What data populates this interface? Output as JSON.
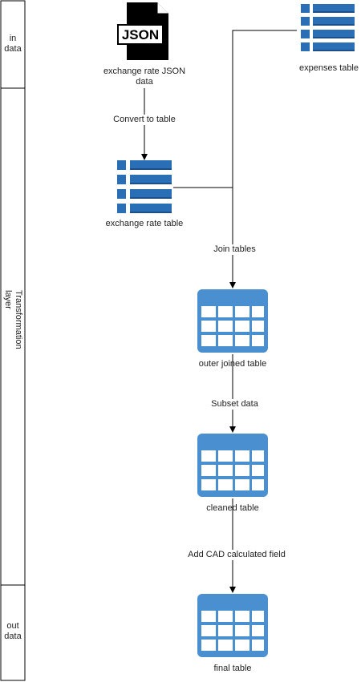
{
  "lanes": [
    {
      "id": "in",
      "label_lines": [
        "in",
        "data"
      ]
    },
    {
      "id": "transform",
      "label_lines": [
        "Transformation",
        "layer"
      ]
    },
    {
      "id": "out",
      "label_lines": [
        "out",
        "data"
      ]
    }
  ],
  "nodes": {
    "json": {
      "label_lines": [
        "exchange rate JSON",
        "data"
      ],
      "icon_text": "JSON"
    },
    "expenses": {
      "label": "expenses table"
    },
    "exchange": {
      "label": "exchange rate table"
    },
    "outer": {
      "label": "outer joined table"
    },
    "cleaned": {
      "label": "cleaned table"
    },
    "final": {
      "label": "final table"
    }
  },
  "edges": {
    "convert": "Convert to table",
    "join": "Join tables",
    "subset": "Subset data",
    "addcad": "Add CAD calculated field"
  },
  "colors": {
    "db_blue": "#2a6fb5",
    "db_dark": "#1d4f86",
    "table_blue": "#4a90d0",
    "line": "#000000"
  }
}
